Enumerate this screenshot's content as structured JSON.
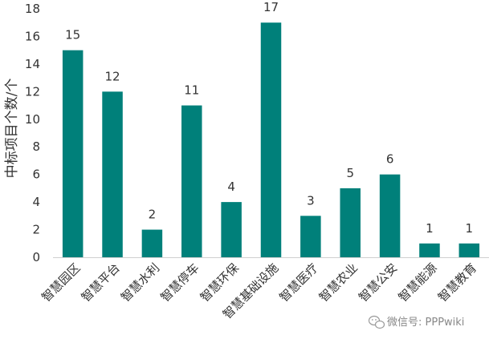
{
  "chart_data": {
    "type": "bar",
    "categories": [
      "智慧园区",
      "智慧平台",
      "智慧水利",
      "智慧停车",
      "智慧环保",
      "智慧基础设施",
      "智慧医疗",
      "智慧农业",
      "智慧公安",
      "智慧能源",
      "智慧教育"
    ],
    "values": [
      15,
      12,
      2,
      11,
      4,
      17,
      3,
      5,
      6,
      1,
      1
    ],
    "ylabel": "中标项目个数/个",
    "xlabel": "",
    "title": "",
    "ylim": [
      0,
      18
    ],
    "yticks": [
      0,
      2,
      4,
      6,
      8,
      10,
      12,
      14,
      16,
      18
    ],
    "bar_color": "#00807a",
    "grid": false,
    "legend": "none"
  },
  "watermark": {
    "text": "微信号: PPPwiki",
    "icon": "wechat-icon"
  }
}
